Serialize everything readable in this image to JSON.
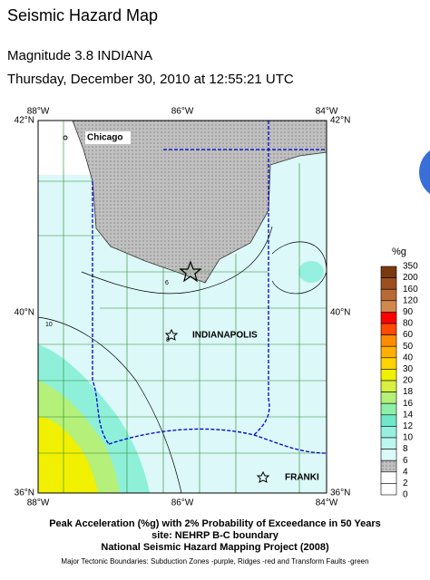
{
  "header": {
    "title": "Seismic Hazard Map",
    "event": "Magnitude 3.8 INDIANA",
    "date": "Thursday, December 30, 2010 at 12:55:21 UTC"
  },
  "map": {
    "top_labels": [
      "88°W",
      "86°W",
      "84°W"
    ],
    "bottom_labels": [
      "88°W",
      "86°W",
      "84°W"
    ],
    "left_labels": [
      "42°N",
      "40°N",
      "36°N"
    ],
    "right_labels": [
      "42°N",
      "40°N",
      "36°N"
    ],
    "cities": [
      "Chicago",
      "INDIANAPOLIS",
      "FRANKI"
    ],
    "contour_labels": [
      "6",
      "10",
      "8"
    ]
  },
  "legend": {
    "title": "%g",
    "labels": [
      350,
      200,
      160,
      120,
      90,
      80,
      60,
      50,
      40,
      30,
      20,
      18,
      16,
      14,
      12,
      10,
      8,
      6,
      4,
      2,
      0
    ],
    "colors": [
      "#7a3a10",
      "#9c5020",
      "#b86a34",
      "#d0884c",
      "#ff0000",
      "#ff4a00",
      "#ff8c00",
      "#ffb000",
      "#ffd400",
      "#f0f000",
      "#d8f040",
      "#b4f07a",
      "#8ef0a8",
      "#6ee8c8",
      "#96f0e0",
      "#bcf6ec",
      "#dcfafa",
      "#c8c8c8",
      "#ffffff",
      "#ffffff"
    ]
  },
  "caption": {
    "line1": "Peak Acceleration (%g) with 2% Probability of Exceedance in 50 Years",
    "line2": "site: NEHRP B-C boundary",
    "line3": "National Seismic Hazard Mapping Project (2008)",
    "note": "Major Tectonic Boundaries: Subduction Zones -purple, Ridges -red and Transform Faults -green"
  }
}
